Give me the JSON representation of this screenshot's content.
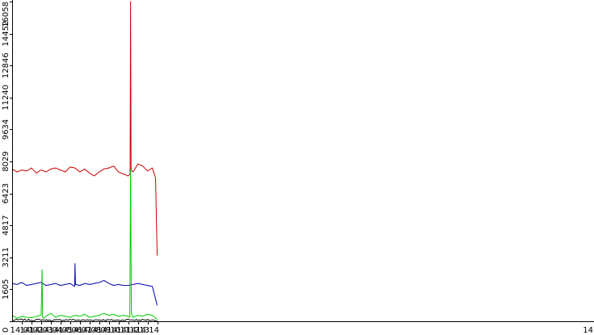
{
  "chart_data": {
    "type": "line",
    "title": "",
    "xlabel": "",
    "ylabel": "",
    "ylim": [
      0,
      16058
    ],
    "xlim_minutes": [
      14.0,
      15.0
    ],
    "grid": false,
    "legend": "none",
    "y_ticks": [
      {
        "value": 0,
        "label": "0"
      },
      {
        "value": 1605,
        "label": "1605"
      },
      {
        "value": 3211,
        "label": "3211"
      },
      {
        "value": 4817,
        "label": "4817"
      },
      {
        "value": 6423,
        "label": "6423"
      },
      {
        "value": 8029,
        "label": "8029"
      },
      {
        "value": 9634,
        "label": "9634"
      },
      {
        "value": 11240,
        "label": "11240"
      },
      {
        "value": 12846,
        "label": "12846"
      },
      {
        "value": 14452,
        "label": "14452"
      },
      {
        "value": 16058,
        "label": "16058"
      }
    ],
    "x_ticks": [
      {
        "t": "14:01",
        "label": "14:01"
      },
      {
        "t": "14:02",
        "label": "14:02"
      },
      {
        "t": "14:03",
        "label": "14:03"
      },
      {
        "t": "14:04",
        "label": "14:04"
      },
      {
        "t": "14:05",
        "label": "14:05"
      },
      {
        "t": "14:06",
        "label": "14:06"
      },
      {
        "t": "14:07",
        "label": "14:07"
      },
      {
        "t": "14:08",
        "label": "14:08"
      },
      {
        "t": "14:09",
        "label": "14:09"
      },
      {
        "t": "14:10",
        "label": "14:10"
      },
      {
        "t": "14:11",
        "label": "14:11"
      },
      {
        "t": "14:12",
        "label": "14:12"
      },
      {
        "t": "14:13",
        "label": "14:13"
      },
      {
        "t": "14:14",
        "label": "14:14"
      },
      {
        "t": "14:15",
        "label": "14"
      }
    ],
    "series": [
      {
        "color": "#cc0000",
        "x": [
          "14:00:00",
          "14:00:30",
          "14:01:00",
          "14:01:30",
          "14:02:00",
          "14:02:30",
          "14:03:00",
          "14:03:30",
          "14:04:00",
          "14:04:30",
          "14:05:00",
          "14:05:30",
          "14:06:00",
          "14:06:30",
          "14:07:00",
          "14:07:30",
          "14:08:00",
          "14:08:30",
          "14:09:00",
          "14:09:30",
          "14:10:00",
          "14:10:30",
          "14:11:00",
          "14:11:30",
          "14:12:00",
          "14:12:12",
          "14:12:15",
          "14:12:18",
          "14:12:30",
          "14:13:00",
          "14:13:30",
          "14:14:00",
          "14:14:30",
          "14:14:50",
          "14:15:00"
        ],
        "y": [
          7650,
          7500,
          7600,
          7550,
          7700,
          7450,
          7600,
          7500,
          7650,
          7700,
          7600,
          7500,
          7750,
          7700,
          7500,
          7650,
          7450,
          7300,
          7500,
          7650,
          7700,
          7800,
          7500,
          7400,
          7300,
          7400,
          16058,
          7600,
          7500,
          7900,
          7800,
          7550,
          7700,
          7200,
          3300
        ]
      },
      {
        "color": "#0000aa",
        "x": [
          "14:00:00",
          "14:00:30",
          "14:01:00",
          "14:01:30",
          "14:02:00",
          "14:02:30",
          "14:03:00",
          "14:03:30",
          "14:04:00",
          "14:04:30",
          "14:05:00",
          "14:05:30",
          "14:06:00",
          "14:06:28",
          "14:06:30",
          "14:06:33",
          "14:07:00",
          "14:07:30",
          "14:08:00",
          "14:08:30",
          "14:09:00",
          "14:09:30",
          "14:10:00",
          "14:10:30",
          "14:11:00",
          "14:11:30",
          "14:12:00",
          "14:12:30",
          "14:13:00",
          "14:13:30",
          "14:14:00",
          "14:14:30",
          "14:15:00"
        ],
        "y": [
          1900,
          1850,
          1950,
          1800,
          1850,
          1900,
          1950,
          1800,
          1850,
          1900,
          1800,
          1850,
          1900,
          1750,
          2900,
          1850,
          1800,
          1900,
          1850,
          1900,
          1950,
          2050,
          1900,
          1800,
          1850,
          1800,
          1800,
          1850,
          1900,
          1850,
          1800,
          1750,
          800
        ]
      },
      {
        "color": "#00cc00",
        "x": [
          "14:00:00",
          "14:00:30",
          "14:01:00",
          "14:01:30",
          "14:02:00",
          "14:02:30",
          "14:03:00",
          "14:03:06",
          "14:03:09",
          "14:03:15",
          "14:03:30",
          "14:04:00",
          "14:04:30",
          "14:05:00",
          "14:05:30",
          "14:06:00",
          "14:06:30",
          "14:07:00",
          "14:07:30",
          "14:08:00",
          "14:08:30",
          "14:09:00",
          "14:09:30",
          "14:10:00",
          "14:10:30",
          "14:11:00",
          "14:11:30",
          "14:12:00",
          "14:12:10",
          "14:12:15",
          "14:12:20",
          "14:12:30",
          "14:13:00",
          "14:13:30",
          "14:14:00",
          "14:14:30",
          "14:15:00"
        ],
        "y": [
          300,
          150,
          250,
          200,
          180,
          250,
          300,
          2600,
          200,
          150,
          250,
          400,
          200,
          300,
          250,
          200,
          300,
          250,
          350,
          200,
          250,
          300,
          400,
          300,
          350,
          250,
          300,
          250,
          200,
          7600,
          400,
          200,
          300,
          250,
          350,
          300,
          100
        ]
      },
      {
        "color": "#000000",
        "x": [
          "14:00:00",
          "14:01:00",
          "14:02:00",
          "14:03:00",
          "14:04:00",
          "14:05:00",
          "14:06:00",
          "14:07:00",
          "14:08:00",
          "14:09:00",
          "14:10:00",
          "14:11:00",
          "14:12:00",
          "14:13:00",
          "14:14:00",
          "14:15:00"
        ],
        "y": [
          50,
          80,
          60,
          70,
          50,
          60,
          80,
          50,
          60,
          70,
          60,
          50,
          80,
          60,
          70,
          40
        ]
      }
    ]
  }
}
